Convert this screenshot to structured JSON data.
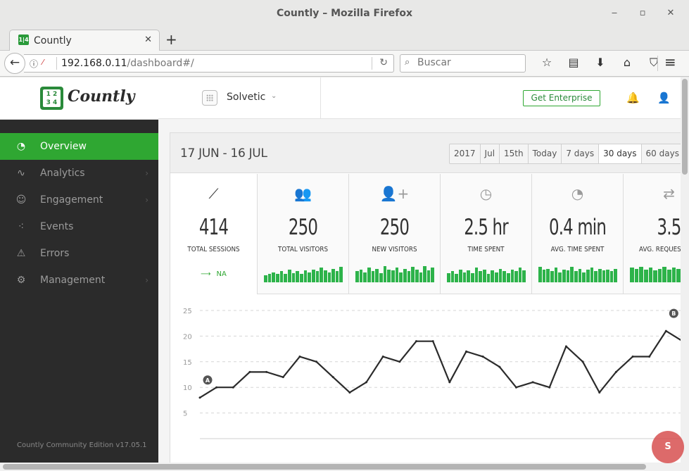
{
  "window": {
    "title": "Countly – Mozilla Firefox",
    "minimize": "‒",
    "maximize": "▫",
    "close": "✕"
  },
  "tab": {
    "favicon": "1|4",
    "title": "Countly",
    "close": "✕",
    "new_tab": "+"
  },
  "nav": {
    "back": "←",
    "info_icon": "ⓘ",
    "lock_icon": "⁄",
    "url_host": "192.168.0.11",
    "url_path": "/dashboard#/",
    "reload": "↻",
    "search_icon": "⌕",
    "search_placeholder": "Buscar",
    "bookmark_star": "☆",
    "reading_list": "▤",
    "downloads": "⬇",
    "home": "⌂",
    "pocket": "⛉",
    "menu": "≡"
  },
  "logo": {
    "icon": "1 2\n3 4",
    "text": "Countly"
  },
  "sidebar": {
    "items": [
      {
        "icon": "◔",
        "label": "Overview",
        "chevron": ""
      },
      {
        "icon": "∿",
        "label": "Analytics",
        "chevron": "›"
      },
      {
        "icon": "☺",
        "label": "Engagement",
        "chevron": "›"
      },
      {
        "icon": "⁖",
        "label": "Events",
        "chevron": ""
      },
      {
        "icon": "⚠",
        "label": "Errors",
        "chevron": ""
      },
      {
        "icon": "⚙",
        "label": "Management",
        "chevron": "›"
      }
    ],
    "edition": "Countly Community Edition v17.05.1"
  },
  "topbar": {
    "app_name": "Solvetic",
    "app_chevron": "⌄",
    "enterprise_label": "Get Enterprise",
    "bell_icon": "🔔",
    "user_icon": "👤"
  },
  "dashboard": {
    "date_range": "17 JUN - 16 JUL",
    "periods": [
      "2017",
      "Jul",
      "15th",
      "Today",
      "7 days",
      "30 days",
      "60 days"
    ],
    "active_period": "30 days",
    "metrics": [
      {
        "icon": "⟋",
        "value": "414",
        "label": "TOTAL SESSIONS",
        "trend_icon": "⟶",
        "trend": "NA"
      },
      {
        "icon": "👥",
        "value": "250",
        "label": "TOTAL VISITORS"
      },
      {
        "icon": "👤+",
        "value": "250",
        "label": "NEW VISITORS"
      },
      {
        "icon": "◷",
        "value": "2.5 hr",
        "label": "TIME SPENT"
      },
      {
        "icon": "◔",
        "value": "0.4 min",
        "label": "AVG. TIME SPENT"
      },
      {
        "icon": "⇄",
        "value": "3.5",
        "label": "AVG. REQUESTS RE"
      }
    ],
    "colors": {
      "accent": "#2fa732",
      "spark": "#2db34a",
      "sidebar": "#2b2b2b"
    }
  },
  "chart_data": {
    "type": "line",
    "ylim": [
      0,
      25
    ],
    "yticks": [
      "25",
      "20",
      "15",
      "10",
      "5"
    ],
    "series": [
      {
        "values": [
          8,
          10,
          10,
          13,
          13,
          12,
          16,
          15,
          12,
          9,
          11,
          16,
          15,
          19,
          19,
          11,
          17,
          16,
          14,
          10,
          11,
          10,
          18,
          15,
          9,
          13,
          16,
          16,
          21,
          19
        ]
      }
    ],
    "annotations": [
      {
        "label": "A",
        "point_index": 0
      },
      {
        "label": "B",
        "point_index": 28
      }
    ],
    "grid": true
  },
  "watermark": "S"
}
